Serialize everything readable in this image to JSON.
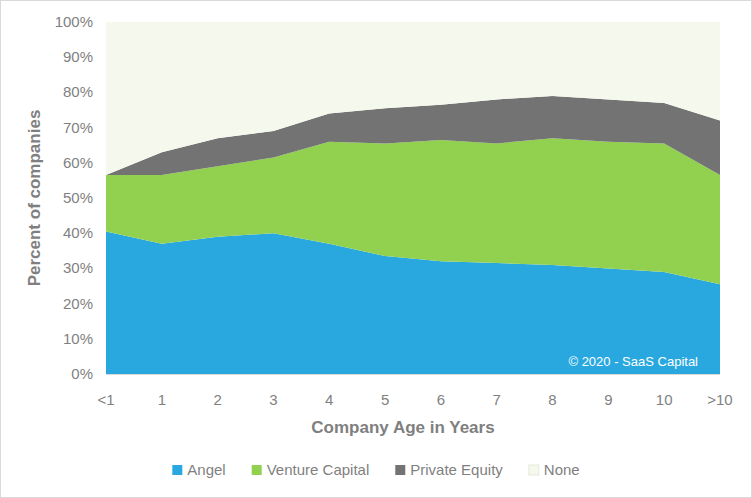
{
  "chart_data": {
    "type": "area",
    "stacked": true,
    "x_label": "Company Age in Years",
    "y_label": "Percent of companies",
    "annotations": [
      "© 2020 - SaaS Capital"
    ],
    "categories": [
      "<1",
      "1",
      "2",
      "3",
      "4",
      "5",
      "6",
      "7",
      "8",
      "9",
      "10",
      ">10"
    ],
    "series": [
      {
        "name": "Angel",
        "color": "#29a8e0",
        "values": [
          40.5,
          37,
          39,
          40,
          37,
          33.5,
          32,
          31.5,
          31,
          30,
          29,
          25.5
        ]
      },
      {
        "name": "Venture Capital",
        "color": "#92d050",
        "values": [
          16,
          19.5,
          20,
          21.5,
          29,
          32,
          34.5,
          34,
          36,
          36,
          36.5,
          31
        ]
      },
      {
        "name": "Private Equity",
        "color": "#737373",
        "values": [
          0,
          6.5,
          8,
          7.5,
          8,
          10,
          10,
          12.5,
          12,
          12,
          11.5,
          15.5
        ]
      },
      {
        "name": "None",
        "color": "#f5f8ec",
        "values": [
          43.5,
          37,
          33,
          31,
          26,
          24.5,
          23.5,
          22,
          21,
          22,
          23,
          28
        ]
      }
    ],
    "ylim": [
      0,
      100
    ],
    "yticks": [
      {
        "value": 0,
        "label": "0%"
      },
      {
        "value": 10,
        "label": "10%"
      },
      {
        "value": 20,
        "label": "20%"
      },
      {
        "value": 30,
        "label": "30%"
      },
      {
        "value": 40,
        "label": "40%"
      },
      {
        "value": 50,
        "label": "50%"
      },
      {
        "value": 60,
        "label": "60%"
      },
      {
        "value": 70,
        "label": "70%"
      },
      {
        "value": 80,
        "label": "80%"
      },
      {
        "value": 90,
        "label": "90%"
      },
      {
        "value": 100,
        "label": "100%"
      }
    ],
    "grid": false,
    "legend": "bottom"
  }
}
